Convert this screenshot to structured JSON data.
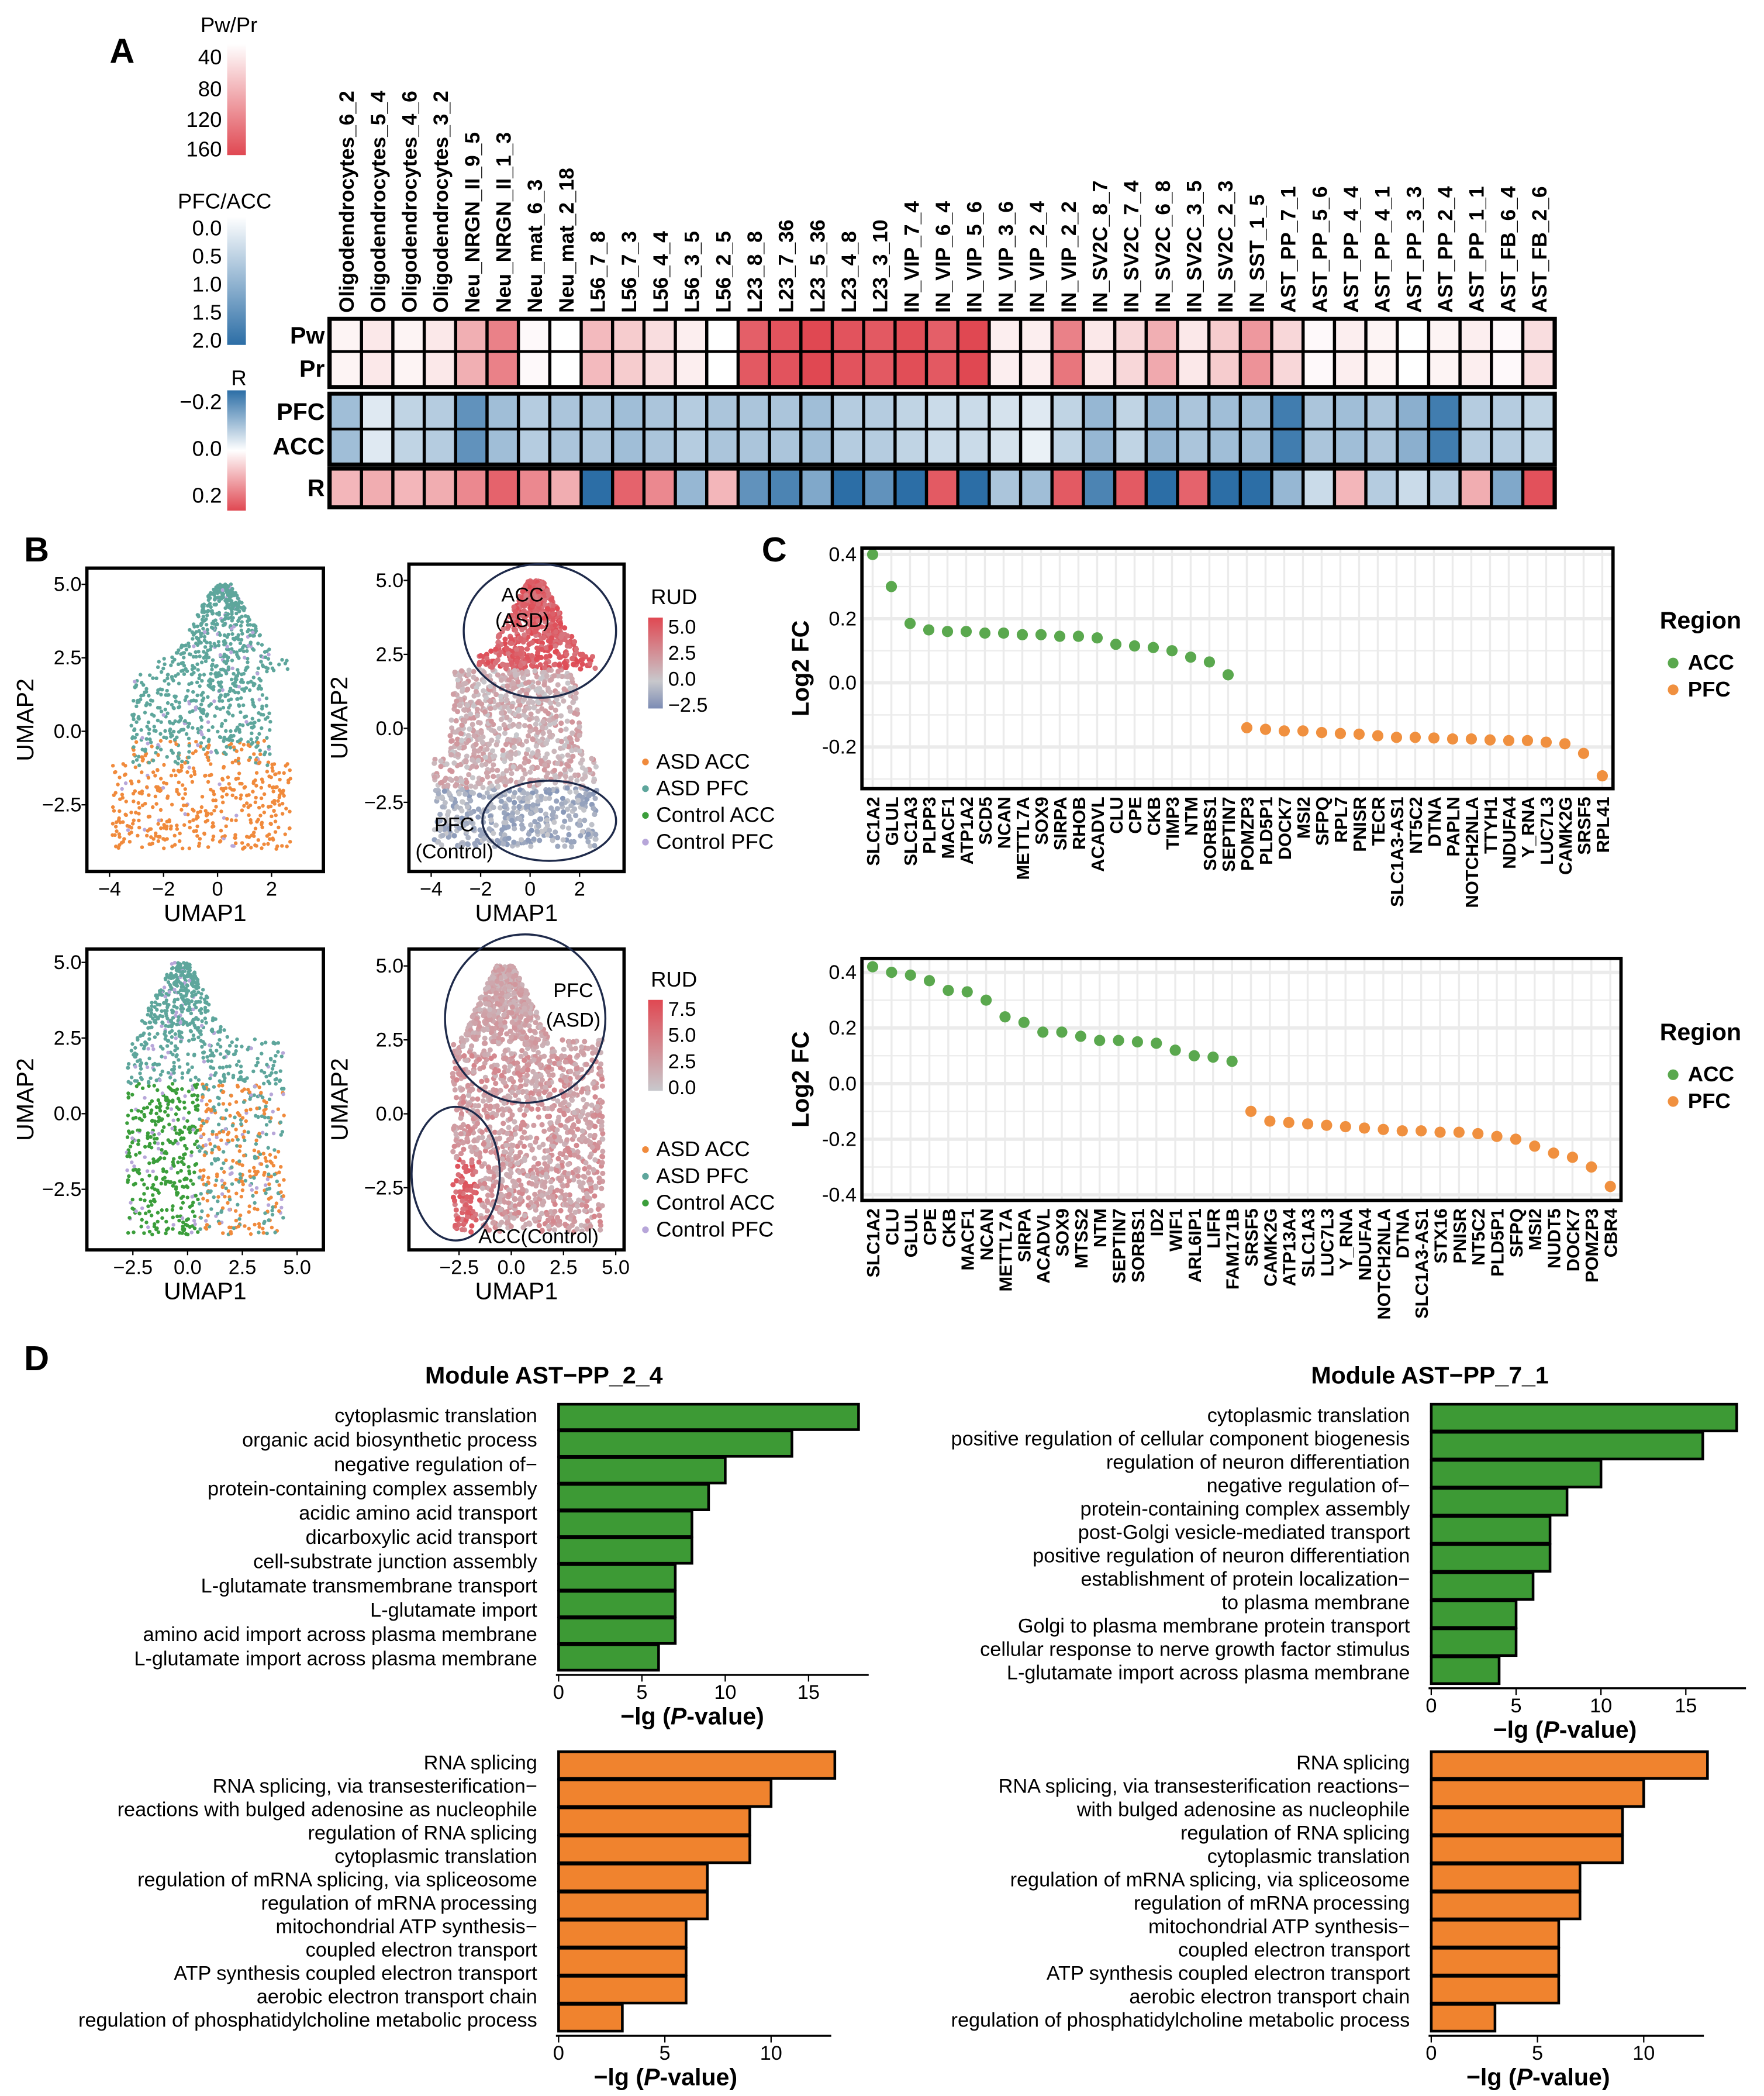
{
  "panels": {
    "a": "A",
    "b": "B",
    "c": "C",
    "d": "D"
  },
  "colors": {
    "red": "#e04a55",
    "blue": "#2f6fa6",
    "acc": "#5aa84e",
    "pfc": "#f08a3c",
    "asd_acc": "#f08a3c",
    "asd_pfc": "#5ea69c",
    "ctrl_acc": "#3b9e3b",
    "ctrl_pfc": "#b7a6d9",
    "green_bar": "#3d9a35",
    "orange_bar": "#f0832e"
  },
  "chart_data": [
    {
      "type": "heatmap",
      "id": "A",
      "columns": [
        "Oligodendrocytes_6_2",
        "Oligodendrocytes_5_4",
        "Oligodendrocytes_4_6",
        "Oligodendrocytes_3_2",
        "Neu_NRGN_II_9_5",
        "Neu_NRGN_II_1_3",
        "Neu_mat_6_3",
        "Neu_mat_2_18",
        "L56_7_8",
        "L56_7_3",
        "L56_4_4",
        "L56_3_5",
        "L56_2_5",
        "L23_8_8",
        "L23_7_36",
        "L23_5_36",
        "L23_4_8",
        "L23_3_10",
        "IN_VIP_7_4",
        "IN_VIP_6_4",
        "IN_VIP_5_6",
        "IN_VIP_3_6",
        "IN_VIP_2_4",
        "IN_VIP_2_2",
        "IN_SV2C_8_7",
        "IN_SV2C_7_4",
        "IN_SV2C_6_8",
        "IN_SV2C_3_5",
        "IN_SV2C_2_3",
        "IN_SST_1_5",
        "AST_PP_7_1",
        "AST_PP_5_6",
        "AST_PP_4_4",
        "AST_PP_4_1",
        "AST_PP_3_3",
        "AST_PP_2_4",
        "AST_PP_1_1",
        "AST_FB_6_4",
        "AST_FB_2_6"
      ],
      "rows": [
        {
          "name": "Pw",
          "scale": "pwpr",
          "values": [
            10,
            20,
            10,
            20,
            70,
            110,
            5,
            0,
            60,
            45,
            30,
            15,
            0,
            140,
            150,
            160,
            150,
            145,
            155,
            140,
            160,
            15,
            15,
            110,
            20,
            35,
            70,
            20,
            45,
            90,
            35,
            5,
            15,
            10,
            0,
            10,
            15,
            5,
            30
          ]
        },
        {
          "name": "Pr",
          "scale": "pwpr",
          "values": [
            10,
            20,
            10,
            20,
            70,
            110,
            5,
            0,
            60,
            45,
            30,
            15,
            0,
            145,
            150,
            160,
            150,
            145,
            155,
            145,
            160,
            15,
            15,
            120,
            20,
            35,
            75,
            20,
            45,
            95,
            35,
            5,
            15,
            10,
            0,
            10,
            15,
            5,
            30
          ]
        },
        {
          "name": "PFC",
          "scale": "ratio",
          "values": [
            0.9,
            0.3,
            0.6,
            0.7,
            1.5,
            0.9,
            0.7,
            0.8,
            0.8,
            0.9,
            0.8,
            0.7,
            0.8,
            0.8,
            0.8,
            0.9,
            0.7,
            0.7,
            0.6,
            0.5,
            0.5,
            0.4,
            0.3,
            0.6,
            1.0,
            0.6,
            1.0,
            0.8,
            0.9,
            0.9,
            1.8,
            0.8,
            0.9,
            0.8,
            1.1,
            1.8,
            0.7,
            0.7,
            0.6
          ]
        },
        {
          "name": "ACC",
          "scale": "ratio",
          "values": [
            0.9,
            0.3,
            0.6,
            0.7,
            1.5,
            0.9,
            0.7,
            0.8,
            0.8,
            0.9,
            0.8,
            0.7,
            0.8,
            0.8,
            0.8,
            0.9,
            0.7,
            0.7,
            0.6,
            0.5,
            0.5,
            0.4,
            0.2,
            0.6,
            1.0,
            0.6,
            1.0,
            0.8,
            0.9,
            0.9,
            1.8,
            0.8,
            0.9,
            0.8,
            1.1,
            1.8,
            0.7,
            0.7,
            0.6
          ]
        },
        {
          "name": "R",
          "scale": "r",
          "values": [
            0.08,
            0.09,
            0.08,
            0.09,
            0.13,
            0.17,
            0.13,
            0.09,
            -0.2,
            0.17,
            0.13,
            -0.1,
            0.08,
            -0.15,
            -0.17,
            -0.12,
            -0.2,
            -0.15,
            -0.2,
            0.18,
            -0.2,
            -0.08,
            -0.09,
            0.18,
            -0.17,
            0.18,
            -0.2,
            0.17,
            -0.2,
            -0.2,
            -0.1,
            -0.05,
            0.08,
            -0.07,
            -0.05,
            -0.07,
            0.09,
            -0.12,
            0.19
          ]
        }
      ],
      "legends": [
        {
          "id": "pwpr",
          "title": "Pw/Pr",
          "ticks": [
            "40",
            "80",
            "120",
            "160"
          ],
          "range": [
            0,
            160
          ]
        },
        {
          "id": "ratio",
          "title": "PFC/ACC",
          "ticks": [
            "0.0",
            "0.5",
            "1.0",
            "1.5",
            "2.0"
          ],
          "range": [
            0,
            2
          ]
        },
        {
          "id": "r",
          "title": "R",
          "ticks": [
            "−0.2",
            "0.0",
            "0.2"
          ],
          "range": [
            -0.2,
            0.2
          ]
        }
      ]
    },
    {
      "type": "scatter",
      "id": "B",
      "xlabel": "UMAP1",
      "ylabel": "UMAP2",
      "groups": [
        "ASD ACC",
        "ASD PFC",
        "Control ACC",
        "Control PFC"
      ],
      "plots": [
        {
          "xticks": [
            "−4",
            "−2",
            "0",
            "2"
          ],
          "yticks": [
            "5.0",
            "2.5",
            "0.0",
            "−2.5"
          ]
        },
        {
          "xticks": [
            "−4",
            "−2",
            "0",
            "2"
          ],
          "yticks": [
            "5.0",
            "2.5",
            "0.0",
            "−2.5"
          ],
          "legend_title": "RUD",
          "legend_ticks": [
            "5.0",
            "2.5",
            "0.0",
            "−2.5"
          ],
          "annotations": [
            "ACC",
            "(ASD)",
            "PFC",
            "(Control)"
          ]
        },
        {
          "xticks": [
            "−2.5",
            "0.0",
            "2.5",
            "5.0"
          ],
          "yticks": [
            "5.0",
            "2.5",
            "0.0",
            "−2.5"
          ]
        },
        {
          "xticks": [
            "−2.5",
            "0.0",
            "2.5",
            "5.0"
          ],
          "yticks": [
            "5.0",
            "2.5",
            "0.0",
            "−2.5"
          ],
          "legend_title": "RUD",
          "legend_ticks": [
            "7.5",
            "5.0",
            "2.5",
            "0.0"
          ],
          "annotations": [
            "PFC",
            "(ASD)",
            "ACC(Control)"
          ]
        }
      ]
    },
    {
      "type": "scatter",
      "id": "C1",
      "ylabel": "Log2 FC",
      "ylim": [
        -0.33,
        0.42
      ],
      "yticks": [
        0.4,
        0.2,
        0.0,
        -0.2
      ],
      "legend_title": "Region",
      "legend": [
        "ACC",
        "PFC"
      ],
      "genes": [
        "SLC1A2",
        "GLUL",
        "SLC1A3",
        "PLPP3",
        "MACF1",
        "ATP1A2",
        "SCD5",
        "NCAN",
        "METTL7A",
        "SOX9",
        "SIRPA",
        "RHOB",
        "ACADVL",
        "CLU",
        "CPE",
        "CKB",
        "TIMP3",
        "NTM",
        "SORBS1",
        "SEPTIN7",
        "POMZP3",
        "PLD5P1",
        "DOCK7",
        "MSI2",
        "SFPQ",
        "RPL7",
        "PNISR",
        "TECR",
        "SLC1A3-AS1",
        "NT5C2",
        "DTNA",
        "PAPLN",
        "NOTCH2NLA",
        "TTYH1",
        "NDUFA4",
        "Y_RNA",
        "LUC7L3",
        "CAMK2G",
        "SRSF5",
        "RPL41"
      ],
      "values": [
        0.4,
        0.3,
        0.185,
        0.165,
        0.16,
        0.16,
        0.155,
        0.155,
        0.15,
        0.15,
        0.145,
        0.145,
        0.14,
        0.12,
        0.115,
        0.11,
        0.1,
        0.08,
        0.065,
        0.025,
        -0.14,
        -0.145,
        -0.15,
        -0.15,
        -0.155,
        -0.158,
        -0.16,
        -0.165,
        -0.17,
        -0.17,
        -0.172,
        -0.175,
        -0.175,
        -0.178,
        -0.18,
        -0.18,
        -0.185,
        -0.19,
        -0.22,
        -0.29
      ]
    },
    {
      "type": "scatter",
      "id": "C2",
      "ylabel": "Log2 FC",
      "ylim": [
        -0.42,
        0.45
      ],
      "yticks": [
        0.4,
        0.2,
        0.0,
        -0.2,
        -0.4
      ],
      "legend_title": "Region",
      "legend": [
        "ACC",
        "PFC"
      ],
      "genes": [
        "SLC1A2",
        "CLU",
        "GLUL",
        "CPE",
        "CKB",
        "MACF1",
        "NCAN",
        "METTL7A",
        "SIRPA",
        "ACADVL",
        "SOX9",
        "MTSS2",
        "NTM",
        "SEPTIN7",
        "SORBS1",
        "ID2",
        "WIF1",
        "ARL6IP1",
        "LIFR",
        "FAM171B",
        "SRSF5",
        "CAMK2G",
        "ATP13A4",
        "SLC1A3",
        "LUC7L3",
        "Y_RNA",
        "NDUFA4",
        "NOTCH2NLA",
        "DTNA",
        "SLC1A3-AS1",
        "STX16",
        "PNISR",
        "NT5C2",
        "PLD5P1",
        "SFPQ",
        "MSI2",
        "NUDT5",
        "DOCK7",
        "POMZP3",
        "CBR4"
      ],
      "values": [
        0.42,
        0.4,
        0.39,
        0.37,
        0.335,
        0.33,
        0.3,
        0.24,
        0.22,
        0.185,
        0.185,
        0.17,
        0.155,
        0.155,
        0.15,
        0.145,
        0.12,
        0.1,
        0.095,
        0.08,
        -0.1,
        -0.135,
        -0.14,
        -0.145,
        -0.15,
        -0.155,
        -0.16,
        -0.165,
        -0.17,
        -0.17,
        -0.175,
        -0.175,
        -0.18,
        -0.19,
        -0.2,
        -0.225,
        -0.25,
        -0.265,
        -0.3,
        -0.37
      ]
    },
    {
      "type": "bar",
      "id": "D",
      "xlabel": "−lg (",
      "xlabel_italic": "P",
      "xlabel_end": "-value)",
      "modules": [
        "Module AST−PP_2_4",
        "Module AST−PP_7_1"
      ],
      "plots": [
        {
          "module": 0,
          "color": "green",
          "xticks": [
            0,
            5,
            10,
            15
          ],
          "terms": [
            [
              "cytoplasmic translation"
            ],
            [
              "organic acid biosynthetic process"
            ],
            [
              "negative regulation of−",
              "protein-containing complex assembly"
            ],
            [
              "acidic amino acid transport"
            ],
            [
              "dicarboxylic acid transport"
            ],
            [
              "cell-substrate junction assembly"
            ],
            [
              "L-glutamate transmembrane transport"
            ],
            [
              "L-glutamate import"
            ],
            [
              "amino acid import across plasma membrane"
            ],
            [
              "L-glutamate import across plasma membrane"
            ]
          ],
          "values": [
            18,
            14,
            10,
            9,
            8,
            8,
            7,
            7,
            7,
            6
          ]
        },
        {
          "module": 1,
          "color": "green",
          "xticks": [
            0,
            5,
            10,
            15
          ],
          "terms": [
            [
              "cytoplasmic translation"
            ],
            [
              "positive regulation of cellular component biogenesis"
            ],
            [
              "regulation of neuron differentiation"
            ],
            [
              "negative regulation of−",
              "protein-containing complex assembly"
            ],
            [
              "post-Golgi vesicle-mediated transport"
            ],
            [
              "positive regulation of neuron differentiation"
            ],
            [
              "establishment of protein localization−",
              "to plasma membrane"
            ],
            [
              "Golgi to plasma membrane protein transport"
            ],
            [
              "cellular response to nerve growth factor stimulus"
            ],
            [
              "L-glutamate import across plasma membrane"
            ]
          ],
          "values": [
            18,
            16,
            10,
            8,
            7,
            7,
            6,
            5,
            5,
            4
          ]
        },
        {
          "module": 0,
          "color": "orange",
          "xticks": [
            0,
            5,
            10
          ],
          "terms": [
            [
              "RNA splicing"
            ],
            [
              "RNA splicing, via transesterification−",
              "reactions with bulged adenosine as nucleophile"
            ],
            [
              "regulation of RNA splicing"
            ],
            [
              "cytoplasmic translation"
            ],
            [
              "regulation of mRNA splicing, via spliceosome"
            ],
            [
              "regulation of mRNA processing"
            ],
            [
              "mitochondrial ATP synthesis−",
              "coupled electron transport"
            ],
            [
              "ATP synthesis coupled electron transport"
            ],
            [
              "aerobic electron transport chain"
            ],
            [
              "regulation of phosphatidylcholine metabolic process"
            ]
          ],
          "values": [
            13,
            10,
            9,
            9,
            7,
            7,
            6,
            6,
            6,
            3
          ]
        },
        {
          "module": 1,
          "color": "orange",
          "xticks": [
            0,
            5,
            10
          ],
          "terms": [
            [
              "RNA splicing"
            ],
            [
              "RNA splicing, via transesterification reactions−",
              "with bulged adenosine as nucleophile"
            ],
            [
              "regulation of RNA splicing"
            ],
            [
              "cytoplasmic translation"
            ],
            [
              "regulation of mRNA splicing, via spliceosome"
            ],
            [
              "regulation of mRNA processing"
            ],
            [
              "mitochondrial ATP synthesis−",
              "coupled electron transport"
            ],
            [
              "ATP synthesis coupled electron transport"
            ],
            [
              "aerobic electron transport chain"
            ],
            [
              "regulation of phosphatidylcholine metabolic process"
            ]
          ],
          "values": [
            13,
            10,
            9,
            9,
            7,
            7,
            6,
            6,
            6,
            3
          ]
        }
      ]
    }
  ]
}
